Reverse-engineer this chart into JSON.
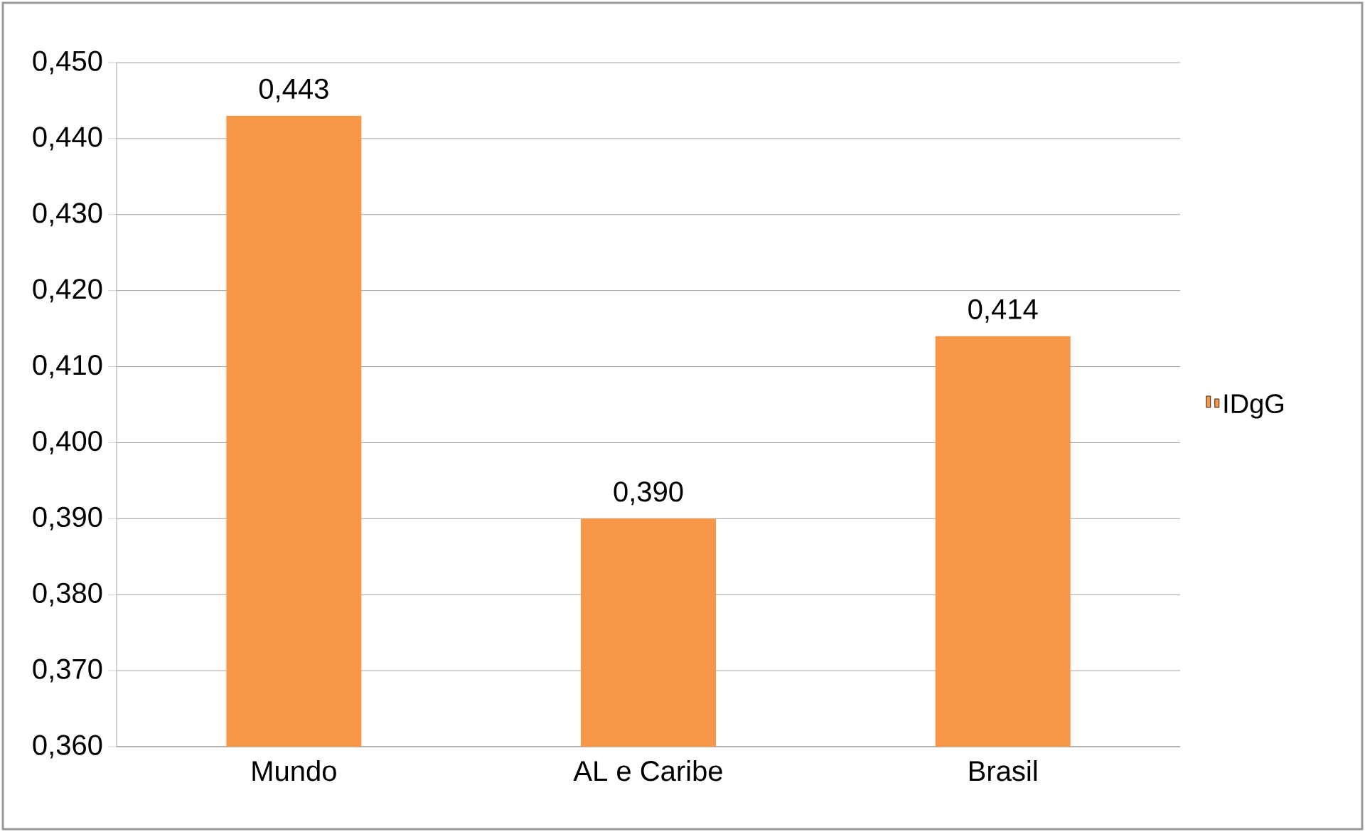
{
  "chart_data": {
    "type": "bar",
    "categories": [
      "Mundo",
      "AL e Caribe",
      "Brasil"
    ],
    "series": [
      {
        "name": "IDgG",
        "color": "#f79646",
        "values": [
          0.443,
          0.39,
          0.414
        ],
        "value_labels": [
          "0,443",
          "0,390",
          "0,414"
        ]
      }
    ],
    "ylim": [
      0.36,
      0.45
    ],
    "yticks": [
      {
        "value": 0.36,
        "label": "0,360"
      },
      {
        "value": 0.37,
        "label": "0,370"
      },
      {
        "value": 0.38,
        "label": "0,380"
      },
      {
        "value": 0.39,
        "label": "0,390"
      },
      {
        "value": 0.4,
        "label": "0,400"
      },
      {
        "value": 0.41,
        "label": "0,410"
      },
      {
        "value": 0.42,
        "label": "0,420"
      },
      {
        "value": 0.43,
        "label": "0,430"
      },
      {
        "value": 0.44,
        "label": "0,440"
      },
      {
        "value": 0.45,
        "label": "0,450"
      }
    ],
    "grid": "y",
    "legend": "right"
  }
}
